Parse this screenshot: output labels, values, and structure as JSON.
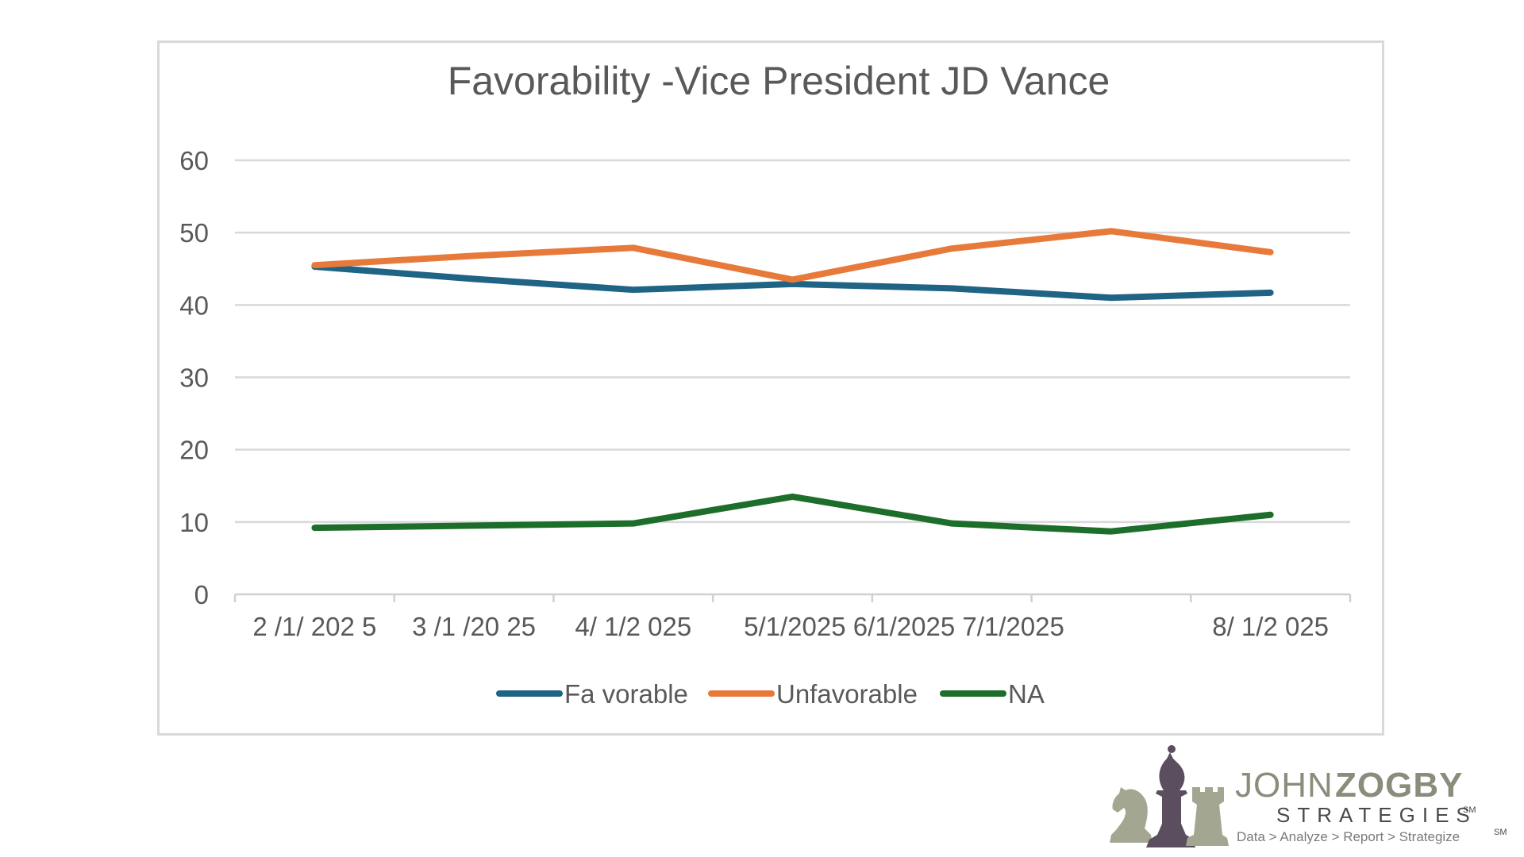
{
  "chart_data": {
    "type": "line",
    "title": "Favorability -Vice President JD Vance",
    "categories": [
      "2 /1/ 202 5",
      "3 /1 /20 25",
      "4/ 1/2 025",
      "5/1/2025 6/1/2025 7/1/2025",
      "8/ 1/2 025"
    ],
    "x": [
      "2/1/2025",
      "3/1/2025",
      "4/1/2025",
      "5/1/2025",
      "6/1/2025",
      "7/1/2025",
      "8/1/2025"
    ],
    "ylim": [
      0,
      60
    ],
    "yticks": [
      "0",
      "10",
      "20",
      "30",
      "40",
      "50",
      "60"
    ],
    "series": [
      {
        "name": "Fa vorable",
        "color": "#1f6385",
        "values": [
          45.3,
          43.6,
          42.1,
          42.9,
          42.3,
          41.0,
          41.7
        ]
      },
      {
        "name": "Unfavorable",
        "color": "#e77a3b",
        "values": [
          45.5,
          46.8,
          47.9,
          43.5,
          47.8,
          50.2,
          47.3
        ]
      },
      {
        "name": "NA",
        "color": "#1e6e2b",
        "values": [
          9.2,
          9.5,
          9.8,
          13.5,
          9.8,
          8.7,
          11.0
        ]
      }
    ],
    "grid": true,
    "legend": "bottom"
  },
  "logo": {
    "name_first": "JOHN",
    "name_last": "ZOGBY",
    "sub": "STRATEGIES",
    "sub_mark": "SM",
    "tagline": "Data > Analyze > Report > Strategize",
    "tagline_mark": "SM",
    "colors": {
      "bishop": "#5b4f5f",
      "pieces": "#a3a691"
    }
  }
}
